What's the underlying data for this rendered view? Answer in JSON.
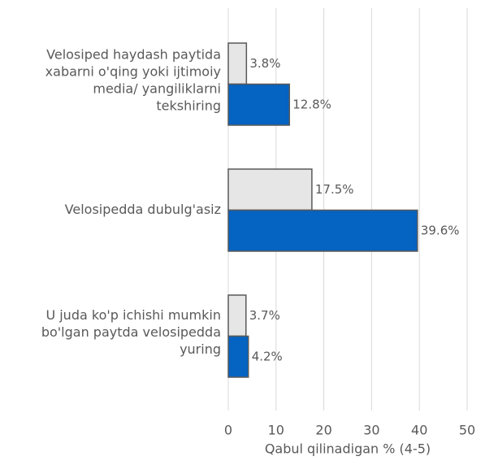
{
  "chart_data": {
    "type": "bar",
    "orientation": "horizontal",
    "categories": [
      [
        "Velosiped haydash paytida",
        "xabarni o'qing yoki ijtimoiy",
        "media/ yangiliklarni",
        "tekshiring"
      ],
      [
        "Velosipedda dubulg'asiz"
      ],
      [
        "U juda ko'p ichishi mumkin",
        "bo'lgan paytda velosipedda",
        "yuring"
      ]
    ],
    "series": [
      {
        "color": "#e6e6e6",
        "values": [
          3.8,
          17.5,
          3.7
        ],
        "value_labels": [
          "3.8%",
          "17.5%",
          "3.7%"
        ]
      },
      {
        "color": "#0563c1",
        "values": [
          12.8,
          39.6,
          4.2
        ],
        "value_labels": [
          "12.8%",
          "39.6%",
          "4.2%"
        ]
      }
    ],
    "xlabel": "Qabul qilinadigan % (4-5)",
    "xlim": [
      0,
      50
    ],
    "xticks": [
      0,
      10,
      20,
      30,
      40,
      50
    ],
    "grid": true
  }
}
